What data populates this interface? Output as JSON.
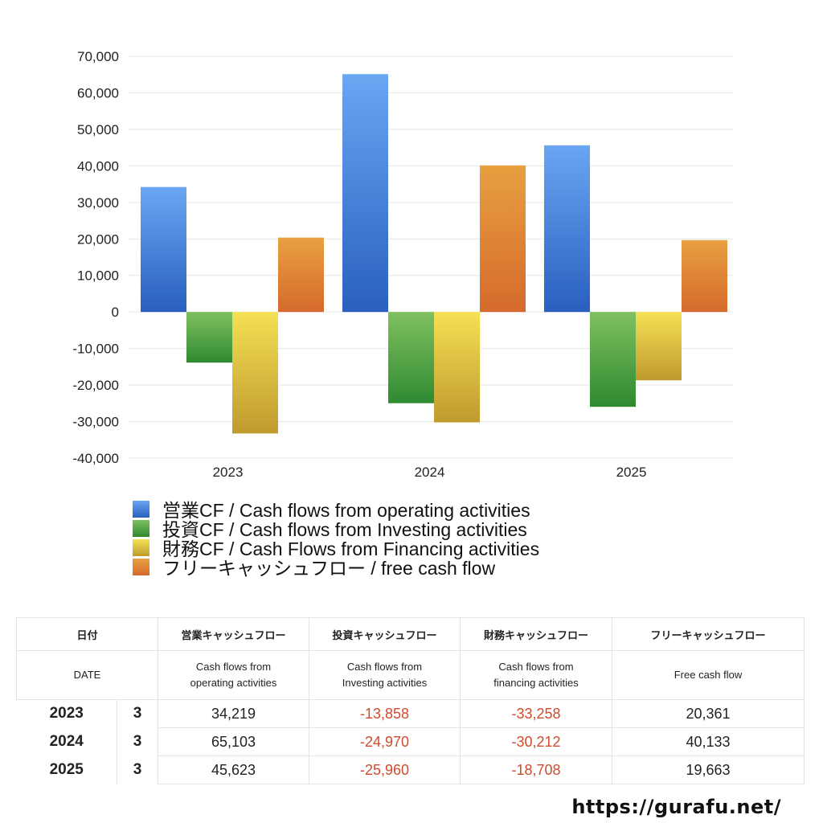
{
  "chart_data": {
    "type": "bar",
    "categories": [
      "2023",
      "2024",
      "2025"
    ],
    "series": [
      {
        "name": "営業CF / Cash flows from operating activities",
        "values": [
          34219,
          65103,
          45623
        ],
        "color_top": "#6aa6f2",
        "color_bottom": "#2a5fbf"
      },
      {
        "name": "投資CF / Cash flows from Investing activities",
        "values": [
          -13858,
          -24970,
          -25960
        ],
        "color_top": "#7fc060",
        "color_bottom": "#2f8a30"
      },
      {
        "name": "財務CF / Cash Flows from Financing activities",
        "values": [
          -33258,
          -30212,
          -18708
        ],
        "color_top": "#f5e055",
        "color_bottom": "#bf9a2e"
      },
      {
        "name": "フリーキャッシュフロー / free cash flow",
        "values": [
          20361,
          40133,
          19663
        ],
        "color_top": "#e8a040",
        "color_bottom": "#d56a2c"
      }
    ],
    "ylim": [
      -40000,
      70000
    ],
    "yticks": [
      "70,000",
      "60,000",
      "50,000",
      "40,000",
      "30,000",
      "20,000",
      "10,000",
      "0",
      "-10,000",
      "-20,000",
      "-30,000",
      "-40,000"
    ],
    "grid": true,
    "legend_position": "bottom"
  },
  "table": {
    "headers_jp": [
      "日付",
      "営業キャッシュフロー",
      "投資キャッシュフロー",
      "財務キャッシュフロー",
      "フリーキャッシュフロー"
    ],
    "headers_en": [
      "DATE",
      "Cash flows from operating activities",
      "Cash flows from Investing activities",
      "Cash flows from financing activities",
      "Free cash flow"
    ],
    "headers_en_lines": [
      [
        "DATE"
      ],
      [
        "Cash flows from",
        "operating activities"
      ],
      [
        "Cash flows from",
        "Investing activities"
      ],
      [
        "Cash flows from",
        "financing activities"
      ],
      [
        "Free cash flow"
      ]
    ],
    "rows": [
      {
        "year": "2023",
        "month": "3",
        "op": "34,219",
        "inv": "-13,858",
        "fin": "-33,258",
        "free": "20,361"
      },
      {
        "year": "2024",
        "month": "3",
        "op": "65,103",
        "inv": "-24,970",
        "fin": "-30,212",
        "free": "40,133"
      },
      {
        "year": "2025",
        "month": "3",
        "op": "45,623",
        "inv": "-25,960",
        "fin": "-18,708",
        "free": "19,663"
      }
    ],
    "negative_color": "#d04a2d"
  },
  "footer": {
    "url": "https://gurafu.net/"
  }
}
